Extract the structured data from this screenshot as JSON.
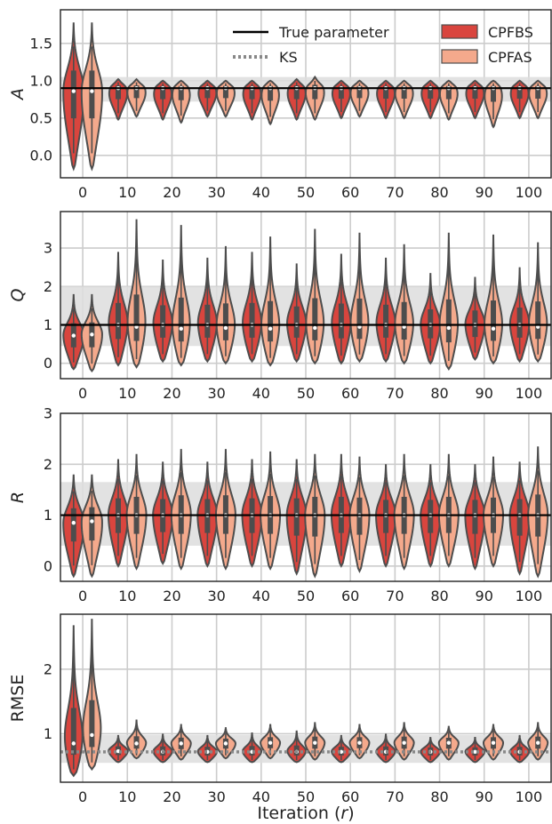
{
  "chart_data": {
    "type": "violin",
    "x_categories": [
      "0",
      "10",
      "20",
      "30",
      "40",
      "50",
      "60",
      "70",
      "80",
      "90",
      "100"
    ],
    "xlabel": "Iteration (r)",
    "legend": {
      "placement": "top-right of first panel",
      "entries": [
        {
          "label": "True parameter",
          "style": "solid-line",
          "color": "#000000"
        },
        {
          "label": "KS",
          "style": "dotted-line",
          "color": "#888888"
        },
        {
          "label": "CPFBS",
          "style": "patch",
          "color": "#d9453e"
        },
        {
          "label": "CPFAS",
          "style": "patch",
          "color": "#f4a98c"
        }
      ]
    },
    "panels": [
      {
        "ylabel": "A",
        "ylabel_italic": true,
        "ylim": [
          -0.3,
          1.95
        ],
        "yticks": [
          "0.0",
          "0.5",
          "1.0",
          "1.5"
        ],
        "ytick_values": [
          0.0,
          0.5,
          1.0,
          1.5
        ],
        "true_value": 0.9,
        "band": [
          0.72,
          1.05
        ],
        "series": [
          {
            "name": "CPFBS",
            "medians": [
              0.86,
              0.9,
              0.9,
              0.9,
              0.9,
              0.9,
              0.9,
              0.9,
              0.9,
              0.9,
              0.9
            ],
            "mins": [
              -0.18,
              0.48,
              0.48,
              0.52,
              0.48,
              0.48,
              0.5,
              0.5,
              0.5,
              0.5,
              0.5
            ],
            "maxs": [
              1.78,
              1.02,
              1.0,
              1.0,
              1.0,
              1.02,
              1.0,
              1.0,
              1.0,
              1.0,
              1.0
            ]
          },
          {
            "name": "CPFAS",
            "medians": [
              0.86,
              0.9,
              0.9,
              0.9,
              0.9,
              0.9,
              0.9,
              0.9,
              0.9,
              0.9,
              0.9
            ],
            "mins": [
              -0.18,
              0.52,
              0.44,
              0.52,
              0.42,
              0.48,
              0.52,
              0.5,
              0.48,
              0.38,
              0.5
            ],
            "maxs": [
              1.78,
              1.02,
              1.0,
              1.0,
              1.0,
              1.05,
              1.0,
              1.0,
              1.0,
              1.0,
              1.0
            ]
          }
        ]
      },
      {
        "ylabel": "Q",
        "ylabel_italic": true,
        "ylim": [
          -0.4,
          3.95
        ],
        "yticks": [
          "0",
          "1",
          "2",
          "3"
        ],
        "ytick_values": [
          0,
          1,
          2,
          3
        ],
        "true_value": 1.0,
        "band": [
          0.45,
          2.0
        ],
        "series": [
          {
            "name": "CPFBS",
            "medians": [
              0.72,
              1.0,
              1.0,
              1.0,
              1.0,
              1.0,
              1.0,
              1.0,
              1.0,
              1.0,
              1.0
            ],
            "mins": [
              -0.15,
              -0.05,
              0.05,
              0.05,
              0.05,
              0.05,
              0.0,
              0.05,
              0.0,
              0.1,
              0.05
            ],
            "maxs": [
              1.8,
              2.9,
              2.7,
              2.75,
              2.9,
              2.6,
              2.85,
              2.75,
              2.35,
              2.25,
              2.5
            ]
          },
          {
            "name": "CPFAS",
            "medians": [
              0.75,
              0.95,
              0.9,
              0.92,
              0.9,
              0.92,
              0.95,
              0.95,
              0.92,
              0.9,
              0.95
            ],
            "mins": [
              -0.2,
              -0.1,
              -0.05,
              0.0,
              -0.05,
              0.0,
              0.05,
              0.0,
              -0.15,
              0.0,
              0.05
            ],
            "maxs": [
              1.8,
              3.75,
              3.6,
              3.05,
              3.3,
              3.5,
              3.4,
              3.1,
              3.4,
              3.35,
              3.15
            ]
          }
        ]
      },
      {
        "ylabel": "R",
        "ylabel_italic": true,
        "ylim": [
          -0.3,
          3.0
        ],
        "yticks": [
          "0",
          "1",
          "2",
          "3"
        ],
        "ytick_values": [
          0,
          1,
          2,
          3
        ],
        "true_value": 1.0,
        "band": [
          0.4,
          1.65
        ],
        "series": [
          {
            "name": "CPFBS",
            "medians": [
              0.85,
              1.0,
              1.0,
              1.0,
              1.0,
              1.0,
              1.0,
              1.0,
              1.0,
              1.0,
              1.0
            ],
            "mins": [
              -0.2,
              0.0,
              0.05,
              0.0,
              0.0,
              -0.15,
              0.0,
              0.0,
              0.0,
              -0.05,
              -0.15
            ],
            "maxs": [
              1.8,
              2.1,
              2.05,
              2.05,
              2.1,
              2.1,
              2.2,
              2.0,
              2.0,
              2.0,
              2.05
            ]
          },
          {
            "name": "CPFAS",
            "medians": [
              0.88,
              1.0,
              1.0,
              1.0,
              1.0,
              1.0,
              1.0,
              1.0,
              1.0,
              1.0,
              1.0
            ],
            "mins": [
              -0.2,
              -0.05,
              -0.05,
              -0.05,
              -0.05,
              -0.2,
              -0.1,
              -0.05,
              0.0,
              0.0,
              -0.2
            ],
            "maxs": [
              1.8,
              2.2,
              2.3,
              2.3,
              2.25,
              2.2,
              2.15,
              2.2,
              2.2,
              2.15,
              2.35
            ]
          }
        ]
      },
      {
        "ylabel": "RMSE",
        "ylabel_italic": false,
        "ylim": [
          0.25,
          2.85
        ],
        "yticks": [
          "1",
          "2"
        ],
        "ytick_values": [
          1,
          2
        ],
        "true_value": null,
        "ks_value": 0.72,
        "band": [
          0.55,
          0.98
        ],
        "series": [
          {
            "name": "CPFBS",
            "medians": [
              0.85,
              0.73,
              0.72,
              0.72,
              0.72,
              0.72,
              0.72,
              0.72,
              0.72,
              0.72,
              0.72
            ],
            "mins": [
              0.35,
              0.56,
              0.56,
              0.56,
              0.56,
              0.56,
              0.56,
              0.56,
              0.56,
              0.56,
              0.56
            ],
            "maxs": [
              2.68,
              0.98,
              1.0,
              0.98,
              1.02,
              1.05,
              0.98,
              1.0,
              0.95,
              0.95,
              0.98
            ]
          },
          {
            "name": "CPFAS",
            "medians": [
              0.98,
              0.85,
              0.85,
              0.85,
              0.86,
              0.86,
              0.86,
              0.86,
              0.86,
              0.86,
              0.86
            ],
            "mins": [
              0.45,
              0.62,
              0.6,
              0.62,
              0.62,
              0.6,
              0.62,
              0.6,
              0.6,
              0.6,
              0.6
            ],
            "maxs": [
              2.78,
              1.22,
              1.15,
              1.1,
              1.15,
              1.18,
              1.15,
              1.18,
              1.12,
              1.15,
              1.18
            ]
          }
        ]
      }
    ],
    "grid": true,
    "colors": {
      "cpfbs": "#d9453e",
      "cpfas": "#f4a98c",
      "outline": "#4d4d4d",
      "band": "#dddddd",
      "grid": "#cccccc",
      "true_line": "#000000",
      "ks_line": "#888888"
    }
  }
}
